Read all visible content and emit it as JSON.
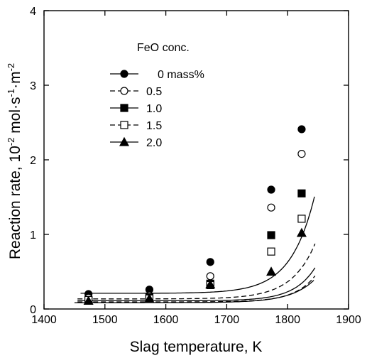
{
  "chart_data": {
    "type": "scatter",
    "xlabel": "Slag temperature, K",
    "ylabel_main": "Reaction rate, 10",
    "ylabel_exp1": "-2",
    "ylabel_unit": " mol·s",
    "ylabel_exp2": "-1",
    "ylabel_unit2": "·m",
    "ylabel_exp3": "-2",
    "xlim": [
      1400,
      1900
    ],
    "ylim": [
      0,
      4
    ],
    "xticks": [
      "1400",
      "1500",
      "1600",
      "1700",
      "1800",
      "1900"
    ],
    "yticks": [
      "0",
      "1",
      "2",
      "3",
      "4"
    ],
    "legend_title": "FeO conc.",
    "legend_position": "upper-left",
    "series": [
      {
        "name": "0 mass%",
        "marker": "filled-circle",
        "line": "solid",
        "x": [
          1473,
          1573,
          1673,
          1773,
          1823
        ],
        "y": [
          0.2,
          0.26,
          0.63,
          1.6,
          2.41
        ],
        "fit": {
          "a": 0.21,
          "b": 0.032,
          "k": 0.0257,
          "x_start": 1460,
          "x_end": 1845
        }
      },
      {
        "name": "0.5",
        "marker": "open-circle",
        "line": "dashed",
        "x": [
          1473,
          1573,
          1673,
          1773,
          1823
        ],
        "y": [
          0.15,
          0.18,
          0.44,
          1.36,
          2.08
        ],
        "fit": {
          "a": 0.135,
          "b": 0.0173,
          "k": 0.0259,
          "x_start": 1455,
          "x_end": 1845
        }
      },
      {
        "name": "1.0",
        "marker": "filled-square",
        "line": "solid",
        "x": [
          1473,
          1573,
          1673,
          1773,
          1823
        ],
        "y": [
          0.12,
          0.16,
          0.34,
          0.99,
          1.55
        ],
        "fit": {
          "a": 0.11,
          "b": 0.0068,
          "k": 0.0288,
          "x_start": 1455,
          "x_end": 1845
        }
      },
      {
        "name": "1.5",
        "marker": "open-square",
        "line": "dashed",
        "x": [
          1473,
          1573,
          1673,
          1773,
          1823
        ],
        "y": [
          0.12,
          0.14,
          0.32,
          0.77,
          1.21
        ],
        "fit": {
          "a": 0.095,
          "b": 0.0047,
          "k": 0.0297,
          "x_start": 1455,
          "x_end": 1845
        }
      },
      {
        "name": "2.0",
        "marker": "filled-triangle",
        "line": "solid",
        "x": [
          1473,
          1573,
          1673,
          1773,
          1823
        ],
        "y": [
          0.11,
          0.14,
          0.33,
          0.5,
          1.02
        ],
        "fit": {
          "a": 0.085,
          "b": 0.0075,
          "k": 0.0258,
          "x_start": 1450,
          "x_end": 1845
        }
      }
    ]
  }
}
